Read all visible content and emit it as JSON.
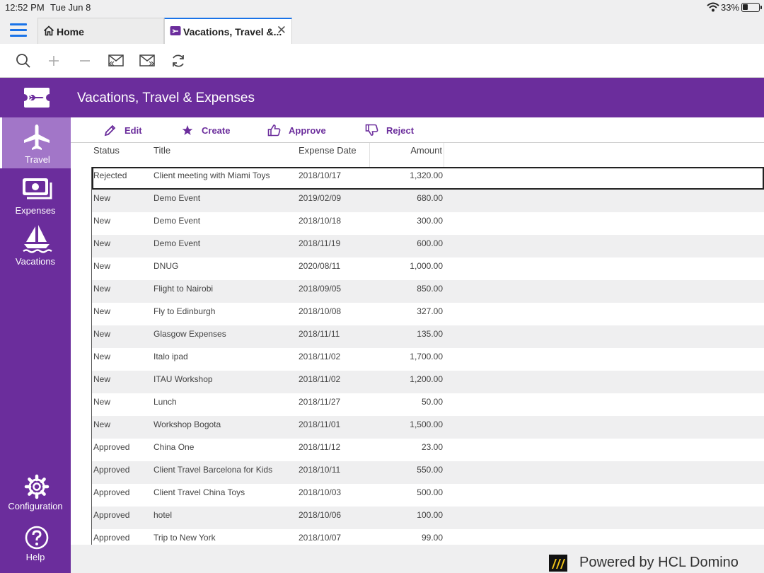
{
  "status_bar": {
    "time": "12:52 PM",
    "date": "Tue Jun 8",
    "battery": "33%"
  },
  "tabs": [
    {
      "label": "Home",
      "icon": "home-icon"
    },
    {
      "label": "Vacations, Travel &...",
      "icon": "travel-app-icon",
      "active": true
    }
  ],
  "toolbar": {
    "icons": [
      "search-icon",
      "plus-icon",
      "minus-icon",
      "mail-reply-icon",
      "mail-forward-icon",
      "refresh-icon"
    ]
  },
  "app": {
    "title": "Vacations, Travel & Expenses",
    "accent": "#6b2d9c"
  },
  "sidebar": {
    "items": [
      {
        "label": "Travel",
        "icon": "airplane-icon",
        "active": true
      },
      {
        "label": "Expenses",
        "icon": "money-icon"
      },
      {
        "label": "Vacations",
        "icon": "sailboat-icon"
      }
    ],
    "bottom": [
      {
        "label": "Configuration",
        "icon": "gear-icon"
      },
      {
        "label": "Help",
        "icon": "help-icon"
      }
    ]
  },
  "actions": [
    {
      "label": "Edit",
      "icon": "pencil-icon"
    },
    {
      "label": "Create",
      "icon": "star-icon"
    },
    {
      "label": "Approve",
      "icon": "thumbs-up-icon"
    },
    {
      "label": "Reject",
      "icon": "thumbs-down-icon"
    }
  ],
  "table": {
    "columns": [
      "Status",
      "Title",
      "Expense Date",
      "Amount"
    ],
    "rows": [
      [
        "Rejected",
        "Client meeting with Miami Toys",
        "2018/10/17",
        "1,320.00"
      ],
      [
        "New",
        "Demo Event",
        "2019/02/09",
        "680.00"
      ],
      [
        "New",
        "Demo Event",
        "2018/10/18",
        "300.00"
      ],
      [
        "New",
        "Demo Event",
        "2018/11/19",
        "600.00"
      ],
      [
        "New",
        "DNUG",
        "2020/08/11",
        "1,000.00"
      ],
      [
        "New",
        "Flight to Nairobi",
        "2018/09/05",
        "850.00"
      ],
      [
        "New",
        "Fly to Edinburgh",
        "2018/10/08",
        "327.00"
      ],
      [
        "New",
        "Glasgow Expenses",
        "2018/11/11",
        "135.00"
      ],
      [
        "New",
        "Italo ipad",
        "2018/11/02",
        "1,700.00"
      ],
      [
        "New",
        "ITAU Workshop",
        "2018/11/02",
        "1,200.00"
      ],
      [
        "New",
        "Lunch",
        "2018/11/27",
        "50.00"
      ],
      [
        "New",
        "Workshop Bogota",
        "2018/11/01",
        "1,500.00"
      ],
      [
        "Approved",
        "China One",
        "2018/11/12",
        "23.00"
      ],
      [
        "Approved",
        "Client Travel Barcelona for Kids",
        "2018/10/11",
        "550.00"
      ],
      [
        "Approved",
        "Client Travel China Toys",
        "2018/10/03",
        "500.00"
      ],
      [
        "Approved",
        "hotel",
        "2018/10/06",
        "100.00"
      ],
      [
        "Approved",
        "Trip to New York",
        "2018/10/07",
        "99.00"
      ]
    ]
  },
  "footer": {
    "text": "Powered by HCL Domino"
  }
}
